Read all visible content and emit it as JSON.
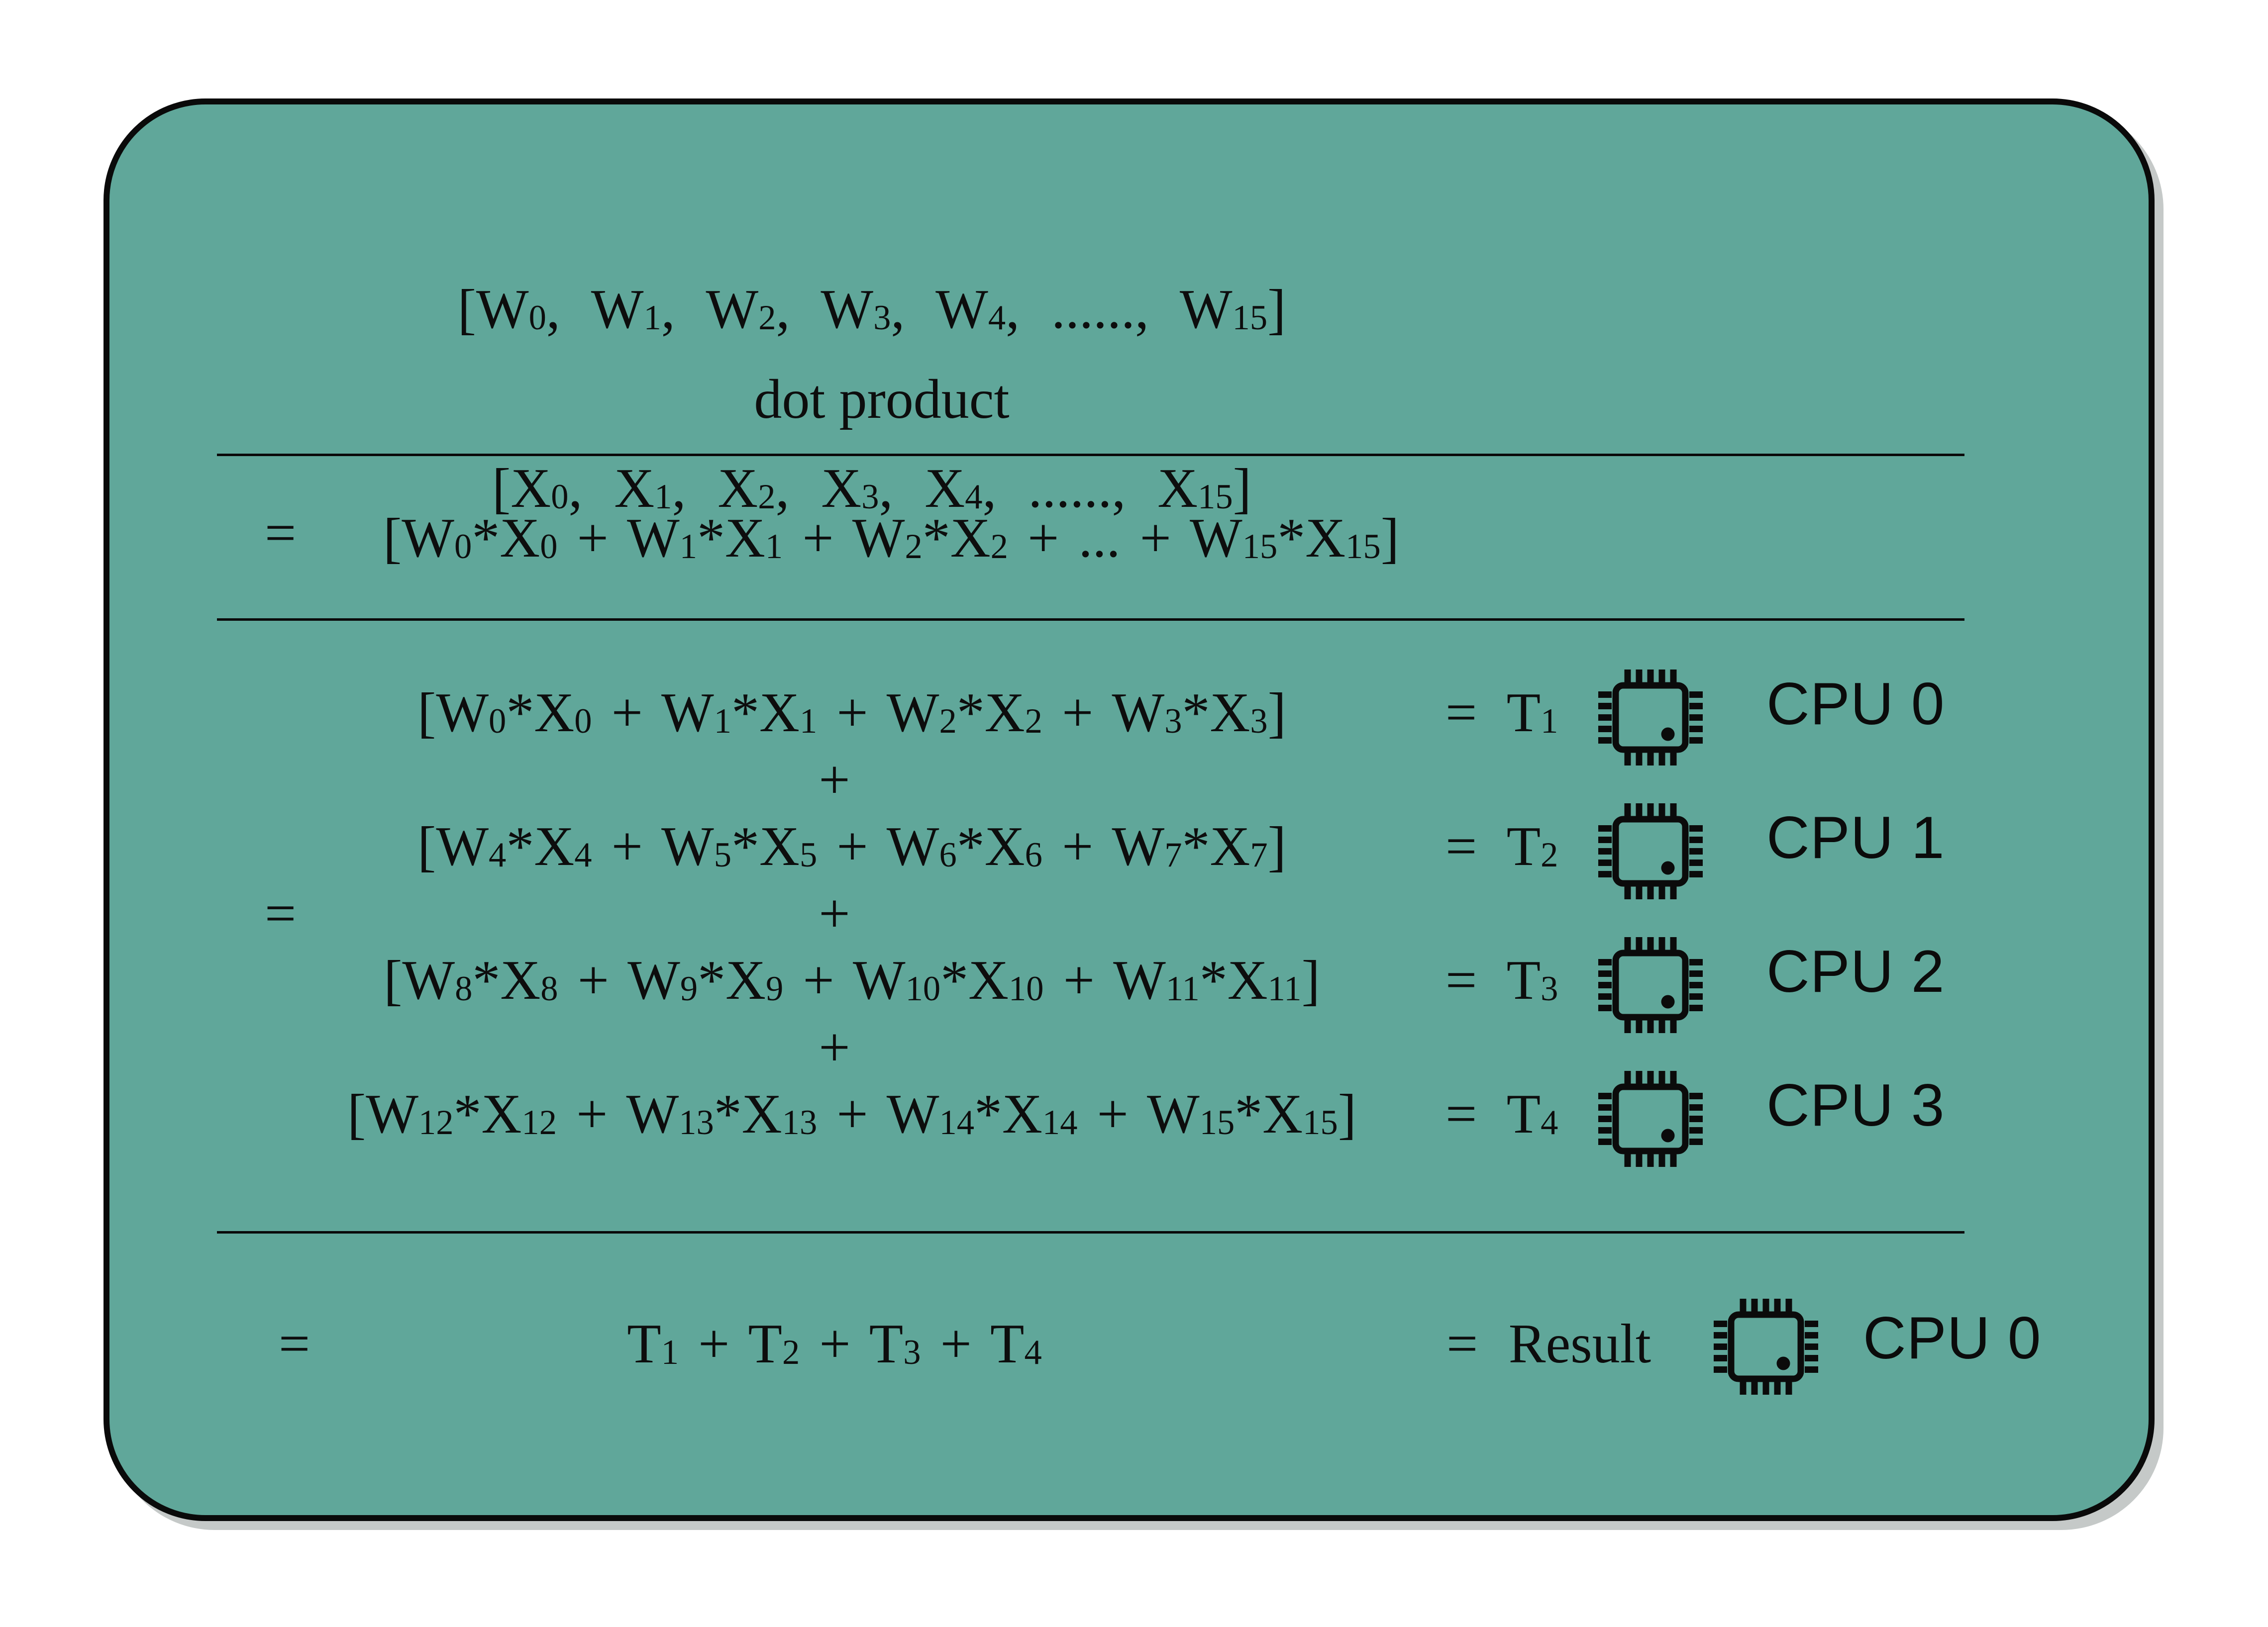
{
  "panel": {
    "fill_color": "#60A79A",
    "border_color": "#0a0a0a",
    "shadow_color": "#c5c9c8",
    "text_color": "#0d0d0d"
  },
  "top": {
    "w_vector": "[W_{0}, W_{1}, W_{2}, W_{3}, W_{4}, ......, W_{15}]",
    "operator_label": "dot product",
    "x_vector": "[X_{0}, X_{1}, X_{2}, X_{3}, X_{4}, ......, X_{15}]"
  },
  "expanded": {
    "equals": "=",
    "formula": "[W_{0}*X_{0} + W_{1}*X_{1} + W_{2}*X_{2} + ... + W_{15}*X_{15}]"
  },
  "parallel": {
    "equals": "=",
    "plus": "+",
    "rows": [
      {
        "formula": "[W_{0}*X_{0} + W_{1}*X_{1} + W_{2}*X_{2} + W_{3}*X_{3}]",
        "result": "= T_{1}",
        "cpu": "CPU 0"
      },
      {
        "formula": "[W_{4}*X_{4} + W_{5}*X_{5} + W_{6}*X_{6} + W_{7}*X_{7}]",
        "result": "= T_{2}",
        "cpu": "CPU 1"
      },
      {
        "formula": "[W_{8}*X_{8} + W_{9}*X_{9} + W_{10}*X_{10} + W_{11}*X_{11}]",
        "result": "= T_{3}",
        "cpu": "CPU 2"
      },
      {
        "formula": "[W_{12}*X_{12} + W_{13}*X_{13} + W_{14}*X_{14} + W_{15}*X_{15}]",
        "result": "= T_{4}",
        "cpu": "CPU 3"
      }
    ]
  },
  "final": {
    "equals": "=",
    "formula": "T_{1} + T_{2} + T_{3} + T_{4}",
    "result": "= Result",
    "cpu": "CPU 0"
  }
}
